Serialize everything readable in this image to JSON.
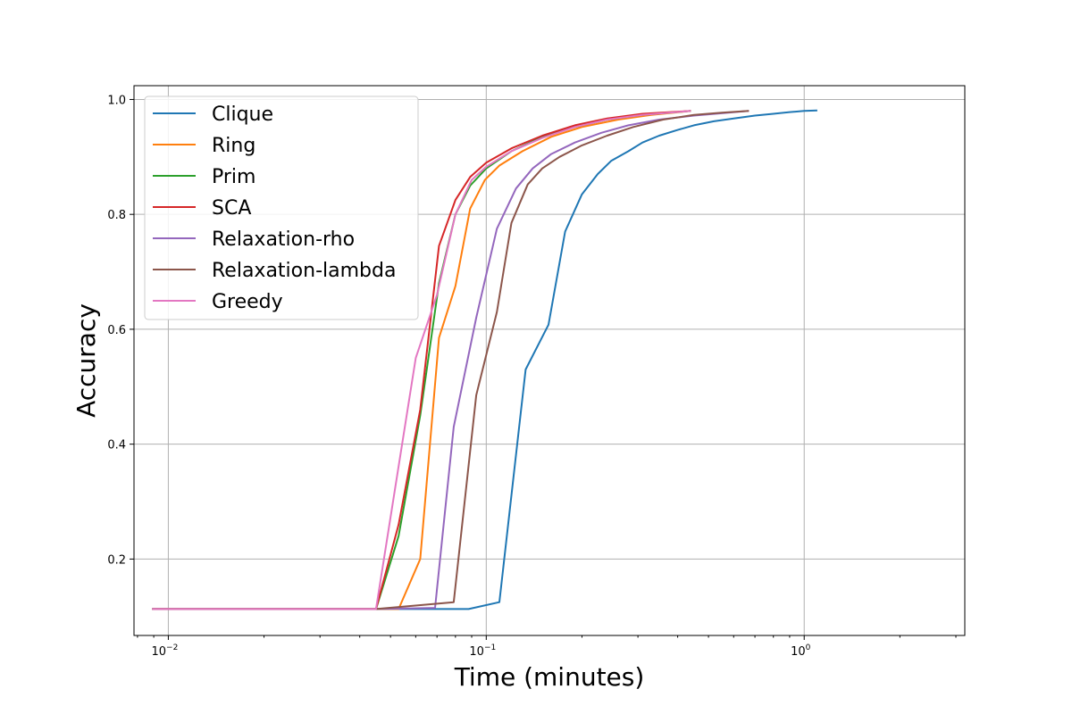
{
  "chart_data": {
    "type": "line",
    "xscale": "log",
    "xlabel": "Time (minutes)",
    "ylabel": "Accuracy",
    "xlim": [
      0.0078,
      3.2
    ],
    "ylim": [
      0.067,
      1.024
    ],
    "grid": true,
    "legend_position": "upper-left",
    "x_ticks": [
      {
        "value": 0.01,
        "mantissa": "10",
        "exponent": "−2"
      },
      {
        "value": 0.1,
        "mantissa": "10",
        "exponent": "−1"
      },
      {
        "value": 1,
        "mantissa": "10",
        "exponent": "0"
      }
    ],
    "y_ticks": [
      {
        "value": 0.2,
        "label": "0.2"
      },
      {
        "value": 0.4,
        "label": "0.4"
      },
      {
        "value": 0.6,
        "label": "0.6"
      },
      {
        "value": 0.8,
        "label": "0.8"
      },
      {
        "value": 1.0,
        "label": "1.0"
      }
    ],
    "series": [
      {
        "name": "Clique",
        "color": "#1f77b4",
        "points": [
          [
            0.0089,
            0.113
          ],
          [
            0.045,
            0.113
          ],
          [
            0.07,
            0.113
          ],
          [
            0.088,
            0.113
          ],
          [
            0.11,
            0.125
          ],
          [
            0.133,
            0.53
          ],
          [
            0.157,
            0.608
          ],
          [
            0.177,
            0.77
          ],
          [
            0.2,
            0.835
          ],
          [
            0.224,
            0.87
          ],
          [
            0.247,
            0.893
          ],
          [
            0.28,
            0.91
          ],
          [
            0.31,
            0.925
          ],
          [
            0.35,
            0.937
          ],
          [
            0.4,
            0.947
          ],
          [
            0.45,
            0.955
          ],
          [
            0.52,
            0.962
          ],
          [
            0.6,
            0.967
          ],
          [
            0.7,
            0.972
          ],
          [
            0.8,
            0.975
          ],
          [
            0.9,
            0.978
          ],
          [
            1.0,
            0.98
          ],
          [
            1.1,
            0.981
          ]
        ]
      },
      {
        "name": "Ring",
        "color": "#ff7f0e",
        "points": [
          [
            0.0089,
            0.113
          ],
          [
            0.045,
            0.113
          ],
          [
            0.053,
            0.113
          ],
          [
            0.062,
            0.2
          ],
          [
            0.071,
            0.585
          ],
          [
            0.08,
            0.675
          ],
          [
            0.089,
            0.81
          ],
          [
            0.099,
            0.86
          ],
          [
            0.11,
            0.885
          ],
          [
            0.13,
            0.91
          ],
          [
            0.16,
            0.935
          ],
          [
            0.2,
            0.952
          ],
          [
            0.26,
            0.965
          ],
          [
            0.33,
            0.973
          ],
          [
            0.44,
            0.98
          ]
        ]
      },
      {
        "name": "Prim",
        "color": "#2ca02c",
        "points": [
          [
            0.0089,
            0.113
          ],
          [
            0.045,
            0.113
          ],
          [
            0.053,
            0.24
          ],
          [
            0.062,
            0.45
          ],
          [
            0.071,
            0.68
          ],
          [
            0.08,
            0.8
          ],
          [
            0.089,
            0.85
          ],
          [
            0.1,
            0.88
          ],
          [
            0.12,
            0.91
          ],
          [
            0.15,
            0.935
          ],
          [
            0.19,
            0.952
          ],
          [
            0.24,
            0.965
          ],
          [
            0.31,
            0.973
          ],
          [
            0.44,
            0.98
          ]
        ]
      },
      {
        "name": "SCA",
        "color": "#d62728",
        "points": [
          [
            0.0089,
            0.113
          ],
          [
            0.045,
            0.113
          ],
          [
            0.053,
            0.26
          ],
          [
            0.062,
            0.46
          ],
          [
            0.071,
            0.745
          ],
          [
            0.08,
            0.825
          ],
          [
            0.089,
            0.865
          ],
          [
            0.1,
            0.89
          ],
          [
            0.12,
            0.915
          ],
          [
            0.15,
            0.937
          ],
          [
            0.19,
            0.955
          ],
          [
            0.24,
            0.967
          ],
          [
            0.31,
            0.975
          ],
          [
            0.44,
            0.98
          ]
        ]
      },
      {
        "name": "Relaxation-rho",
        "color": "#9467bd",
        "points": [
          [
            0.0089,
            0.113
          ],
          [
            0.045,
            0.113
          ],
          [
            0.069,
            0.115
          ],
          [
            0.079,
            0.43
          ],
          [
            0.093,
            0.62
          ],
          [
            0.108,
            0.775
          ],
          [
            0.124,
            0.845
          ],
          [
            0.14,
            0.88
          ],
          [
            0.16,
            0.905
          ],
          [
            0.19,
            0.925
          ],
          [
            0.23,
            0.942
          ],
          [
            0.28,
            0.955
          ],
          [
            0.35,
            0.965
          ],
          [
            0.45,
            0.972
          ],
          [
            0.55,
            0.976
          ],
          [
            0.67,
            0.98
          ]
        ]
      },
      {
        "name": "Relaxation-lambda",
        "color": "#8c564b",
        "points": [
          [
            0.0089,
            0.113
          ],
          [
            0.045,
            0.113
          ],
          [
            0.079,
            0.125
          ],
          [
            0.093,
            0.485
          ],
          [
            0.108,
            0.63
          ],
          [
            0.12,
            0.785
          ],
          [
            0.135,
            0.852
          ],
          [
            0.15,
            0.88
          ],
          [
            0.17,
            0.9
          ],
          [
            0.2,
            0.92
          ],
          [
            0.24,
            0.937
          ],
          [
            0.29,
            0.952
          ],
          [
            0.36,
            0.965
          ],
          [
            0.45,
            0.973
          ],
          [
            0.55,
            0.977
          ],
          [
            0.67,
            0.98
          ]
        ]
      },
      {
        "name": "Greedy",
        "color": "#e377c2",
        "points": [
          [
            0.0089,
            0.113
          ],
          [
            0.045,
            0.113
          ],
          [
            0.06,
            0.55
          ],
          [
            0.07,
            0.66
          ],
          [
            0.08,
            0.8
          ],
          [
            0.09,
            0.86
          ],
          [
            0.1,
            0.883
          ],
          [
            0.12,
            0.91
          ],
          [
            0.15,
            0.933
          ],
          [
            0.19,
            0.952
          ],
          [
            0.24,
            0.965
          ],
          [
            0.31,
            0.973
          ],
          [
            0.44,
            0.98
          ]
        ]
      }
    ]
  }
}
